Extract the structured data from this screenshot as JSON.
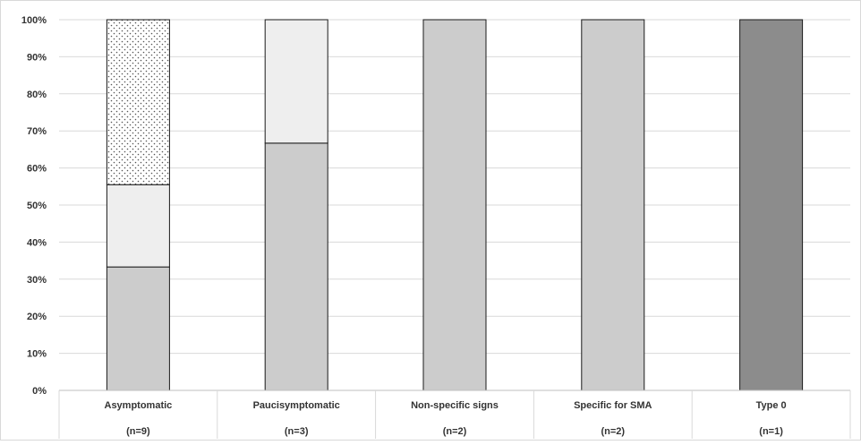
{
  "chart_data": {
    "type": "bar",
    "stacked": true,
    "categories": [
      "Asymptomatic",
      "Paucisymptomatic",
      "Non-specific signs",
      "Specific for SMA",
      "Type 0"
    ],
    "category_counts": [
      "(n=9)",
      "(n=3)",
      "(n=2)",
      "(n=2)",
      "(n=1)"
    ],
    "yticks": [
      "0%",
      "10%",
      "20%",
      "30%",
      "40%",
      "50%",
      "60%",
      "70%",
      "80%",
      "90%",
      "100%"
    ],
    "ylim": [
      0,
      100
    ],
    "grid": true,
    "series": [
      {
        "values": [
          33.3,
          66.7,
          100,
          100,
          0
        ],
        "color": "#cccccc"
      },
      {
        "values": [
          22.2,
          33.3,
          0,
          0,
          0
        ],
        "color": "#eeeeee"
      },
      {
        "values": [
          44.5,
          0,
          0,
          0,
          0
        ],
        "color": "#ffffff",
        "pattern": "dots"
      },
      {
        "values": [
          0,
          0,
          0,
          0,
          100
        ],
        "color": "#8c8c8c"
      }
    ]
  }
}
